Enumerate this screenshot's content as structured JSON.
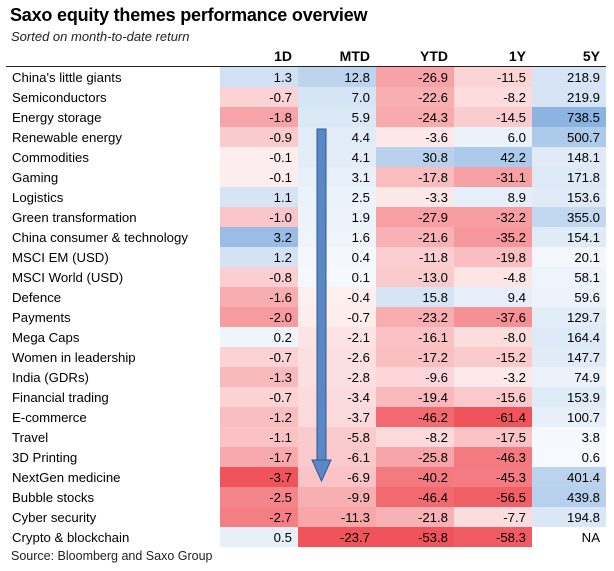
{
  "header": {
    "title": "Saxo equity themes performance overview",
    "subtitle": "Sorted on month-to-date return",
    "source": "Source: Bloomberg and Saxo Group"
  },
  "colors": {
    "negative": "#f0535a",
    "positive": "#8bb4e2",
    "neutral": "#ffffff"
  },
  "chart_data": {
    "type": "table",
    "title": "Saxo equity themes performance overview",
    "subtitle": "Sorted on month-to-date return",
    "columns": [
      "1D",
      "MTD",
      "YTD",
      "1Y",
      "5Y"
    ],
    "rows": [
      {
        "theme": "China's little giants",
        "values": [
          "1.3",
          "12.8",
          "-26.9",
          "-11.5",
          "218.9"
        ]
      },
      {
        "theme": "Semiconductors",
        "values": [
          "-0.7",
          "7.0",
          "-22.6",
          "-8.2",
          "219.9"
        ]
      },
      {
        "theme": "Energy storage",
        "values": [
          "-1.8",
          "5.9",
          "-24.3",
          "-14.5",
          "738.5"
        ]
      },
      {
        "theme": "Renewable energy",
        "values": [
          "-0.9",
          "4.4",
          "-3.6",
          "6.0",
          "500.7"
        ]
      },
      {
        "theme": "Commodities",
        "values": [
          "-0.1",
          "4.1",
          "30.8",
          "42.2",
          "148.1"
        ]
      },
      {
        "theme": "Gaming",
        "values": [
          "-0.1",
          "3.1",
          "-17.8",
          "-31.1",
          "171.8"
        ]
      },
      {
        "theme": "Logistics",
        "values": [
          "1.1",
          "2.5",
          "-3.3",
          "8.9",
          "153.6"
        ]
      },
      {
        "theme": "Green transformation",
        "values": [
          "-1.0",
          "1.9",
          "-27.9",
          "-32.2",
          "355.0"
        ]
      },
      {
        "theme": "China consumer & technology",
        "values": [
          "3.2",
          "1.6",
          "-21.6",
          "-35.2",
          "154.1"
        ]
      },
      {
        "theme": "MSCI EM (USD)",
        "values": [
          "1.2",
          "0.4",
          "-11.8",
          "-19.8",
          "20.1"
        ]
      },
      {
        "theme": "MSCI World (USD)",
        "values": [
          "-0.8",
          "0.1",
          "-13.0",
          "-4.8",
          "58.1"
        ]
      },
      {
        "theme": "Defence",
        "values": [
          "-1.6",
          "-0.4",
          "15.8",
          "9.4",
          "59.6"
        ]
      },
      {
        "theme": "Payments",
        "values": [
          "-2.0",
          "-0.7",
          "-23.2",
          "-37.6",
          "129.7"
        ]
      },
      {
        "theme": "Mega Caps",
        "values": [
          "0.2",
          "-2.1",
          "-16.1",
          "-8.0",
          "164.4"
        ]
      },
      {
        "theme": "Women in leadership",
        "values": [
          "-0.7",
          "-2.6",
          "-17.2",
          "-15.2",
          "147.7"
        ]
      },
      {
        "theme": "India (GDRs)",
        "values": [
          "-1.3",
          "-2.8",
          "-9.6",
          "-3.2",
          "74.9"
        ]
      },
      {
        "theme": "Financial trading",
        "values": [
          "-0.7",
          "-3.4",
          "-19.4",
          "-15.6",
          "153.9"
        ]
      },
      {
        "theme": "E-commerce",
        "values": [
          "-1.2",
          "-3.7",
          "-46.2",
          "-61.4",
          "100.7"
        ]
      },
      {
        "theme": "Travel",
        "values": [
          "-1.1",
          "-5.8",
          "-8.2",
          "-17.5",
          "3.8"
        ]
      },
      {
        "theme": "3D Printing",
        "values": [
          "-1.7",
          "-6.1",
          "-25.8",
          "-46.3",
          "0.6"
        ]
      },
      {
        "theme": "NextGen medicine",
        "values": [
          "-3.7",
          "-6.9",
          "-40.2",
          "-45.3",
          "401.4"
        ]
      },
      {
        "theme": "Bubble stocks",
        "values": [
          "-2.5",
          "-9.9",
          "-46.4",
          "-56.5",
          "439.8"
        ]
      },
      {
        "theme": "Cyber security",
        "values": [
          "-2.7",
          "-11.3",
          "-21.8",
          "-7.7",
          "194.8"
        ]
      },
      {
        "theme": "Crypto & blockchain",
        "values": [
          "0.5",
          "-23.7",
          "-53.8",
          "-58.3",
          "NA"
        ]
      }
    ]
  }
}
